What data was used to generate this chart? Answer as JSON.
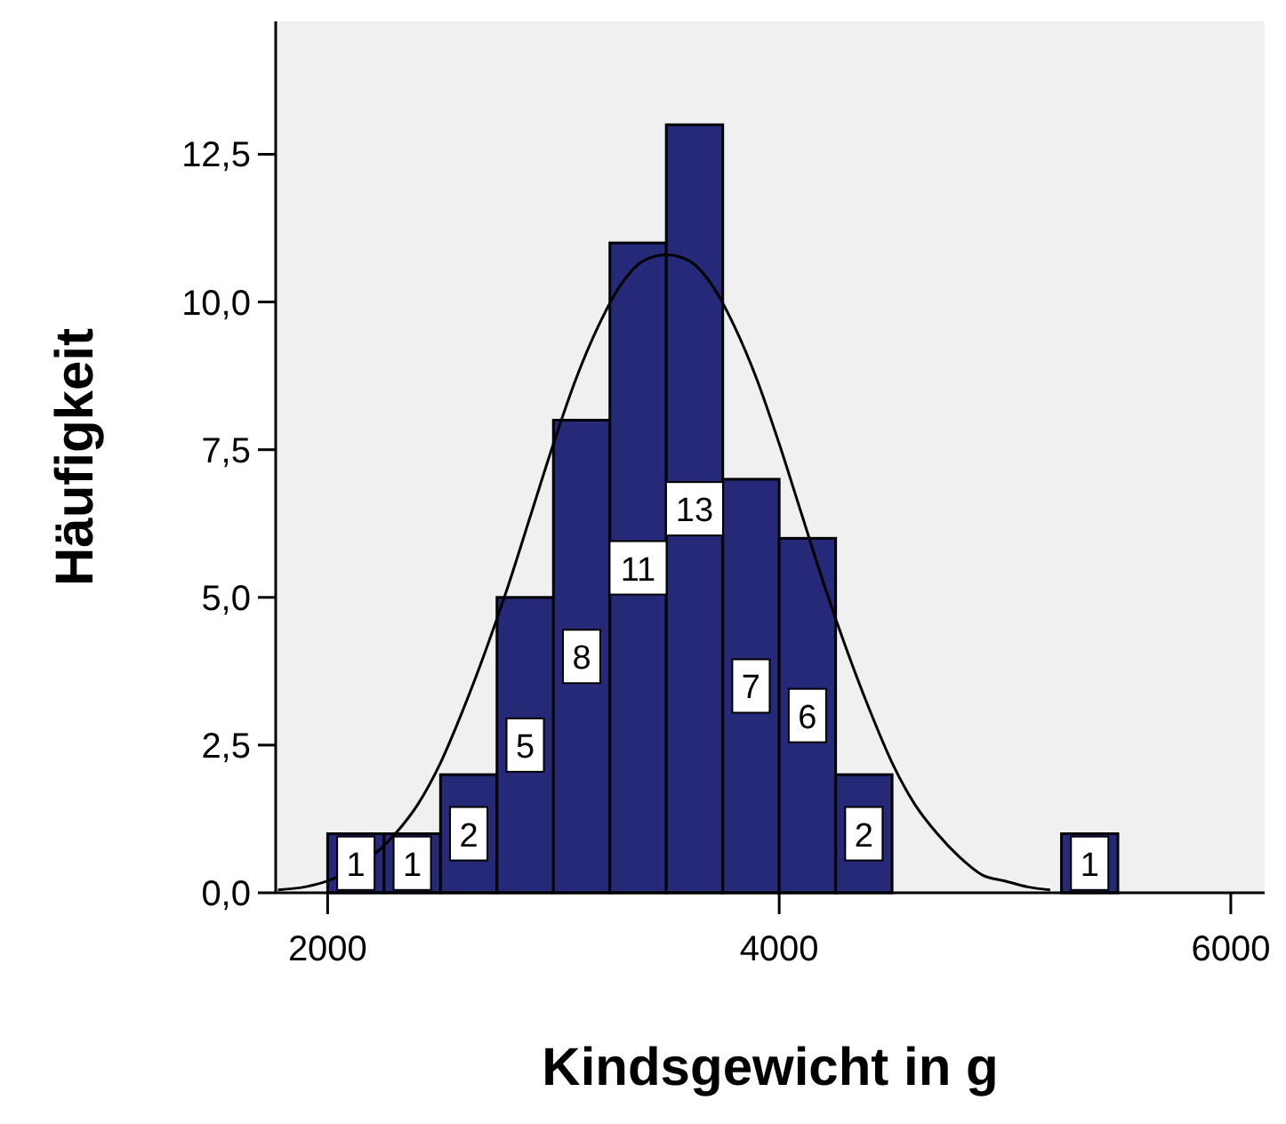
{
  "chart_data": {
    "type": "histogram",
    "xlabel": "Kindsgewicht in g",
    "ylabel": "Häufigkeit",
    "bins": [
      2000,
      2250,
      2500,
      2750,
      3000,
      3250,
      3500,
      3750,
      4000,
      4250,
      4500,
      4750,
      5000,
      5250,
      5500
    ],
    "values": [
      1,
      1,
      2,
      5,
      8,
      11,
      13,
      7,
      6,
      2,
      0,
      0,
      0,
      1
    ],
    "value_labels": [
      "1",
      "1",
      "2",
      "5",
      "8",
      "11",
      "13",
      "7",
      "6",
      "2",
      null,
      null,
      null,
      "1"
    ],
    "color": "#262878",
    "series": [
      {
        "type": "line",
        "color": "#000000",
        "x": [
          1780,
          1900,
          2000,
          2300,
          2400,
          2500,
          2600,
          2700,
          2800,
          2900,
          3000,
          3100,
          3200,
          3300,
          3400,
          3500,
          3600,
          3700,
          3800,
          3900,
          4000,
          4100,
          4200,
          4300,
          4400,
          4500,
          4600,
          4700,
          4800,
          4900,
          5000,
          5100,
          5200
        ],
        "values": [
          0.05,
          0.1,
          0.2,
          1.0,
          1.5,
          2.2,
          3.1,
          4.1,
          5.2,
          6.4,
          7.6,
          8.7,
          9.6,
          10.3,
          10.7,
          10.8,
          10.7,
          10.3,
          9.6,
          8.7,
          7.6,
          6.4,
          5.2,
          4.1,
          3.1,
          2.2,
          1.5,
          1.0,
          0.6,
          0.3,
          0.2,
          0.1,
          0.05
        ]
      }
    ],
    "xlim": [
      1770,
      6150
    ],
    "xticks": [
      2000,
      4000,
      6000
    ],
    "ylim": [
      0,
      14.75
    ],
    "yticks": [
      {
        "value": 0,
        "label": "0,0"
      },
      {
        "value": 2.5,
        "label": "2,5"
      },
      {
        "value": 5,
        "label": "5,0"
      },
      {
        "value": 7.5,
        "label": "7,5"
      },
      {
        "value": 10,
        "label": "10,0"
      },
      {
        "value": 12.5,
        "label": "12,5"
      }
    ]
  }
}
